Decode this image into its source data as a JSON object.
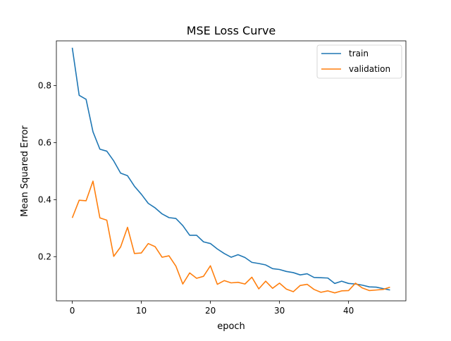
{
  "chart_data": {
    "type": "line",
    "title": "MSE Loss Curve",
    "xlabel": "epoch",
    "ylabel": "Mean Squared Error",
    "xlim": [
      -2.3,
      48.3
    ],
    "ylim": [
      0.045,
      0.957
    ],
    "xticks": [
      0,
      10,
      20,
      30,
      40
    ],
    "yticks": [
      0.2,
      0.4,
      0.6,
      0.8
    ],
    "ytick_labels": [
      "0.2",
      "0.4",
      "0.6",
      "0.8"
    ],
    "grid": false,
    "legend_position": "top-right",
    "x": [
      0,
      1,
      2,
      3,
      4,
      5,
      6,
      7,
      8,
      9,
      10,
      11,
      12,
      13,
      14,
      15,
      16,
      17,
      18,
      19,
      20,
      21,
      22,
      23,
      24,
      25,
      26,
      27,
      28,
      29,
      30,
      31,
      32,
      33,
      34,
      35,
      36,
      37,
      38,
      39,
      40,
      41,
      42,
      43,
      44,
      45,
      46
    ],
    "series": [
      {
        "name": "train",
        "color": "#1f77b4",
        "values": [
          0.933,
          0.766,
          0.752,
          0.638,
          0.577,
          0.57,
          0.536,
          0.493,
          0.484,
          0.447,
          0.419,
          0.387,
          0.371,
          0.35,
          0.337,
          0.334,
          0.309,
          0.275,
          0.275,
          0.252,
          0.246,
          0.227,
          0.211,
          0.198,
          0.207,
          0.197,
          0.18,
          0.176,
          0.171,
          0.158,
          0.155,
          0.148,
          0.144,
          0.136,
          0.14,
          0.127,
          0.126,
          0.125,
          0.106,
          0.114,
          0.106,
          0.104,
          0.1,
          0.094,
          0.093,
          0.088,
          0.083
        ]
      },
      {
        "name": "validation",
        "color": "#ff7f0e",
        "values": [
          0.336,
          0.398,
          0.396,
          0.465,
          0.336,
          0.328,
          0.201,
          0.234,
          0.303,
          0.211,
          0.213,
          0.246,
          0.235,
          0.198,
          0.203,
          0.167,
          0.104,
          0.143,
          0.124,
          0.131,
          0.168,
          0.103,
          0.116,
          0.108,
          0.11,
          0.104,
          0.128,
          0.087,
          0.114,
          0.089,
          0.107,
          0.086,
          0.077,
          0.099,
          0.103,
          0.085,
          0.075,
          0.08,
          0.073,
          0.08,
          0.081,
          0.107,
          0.09,
          0.081,
          0.083,
          0.085,
          0.093
        ]
      }
    ]
  }
}
